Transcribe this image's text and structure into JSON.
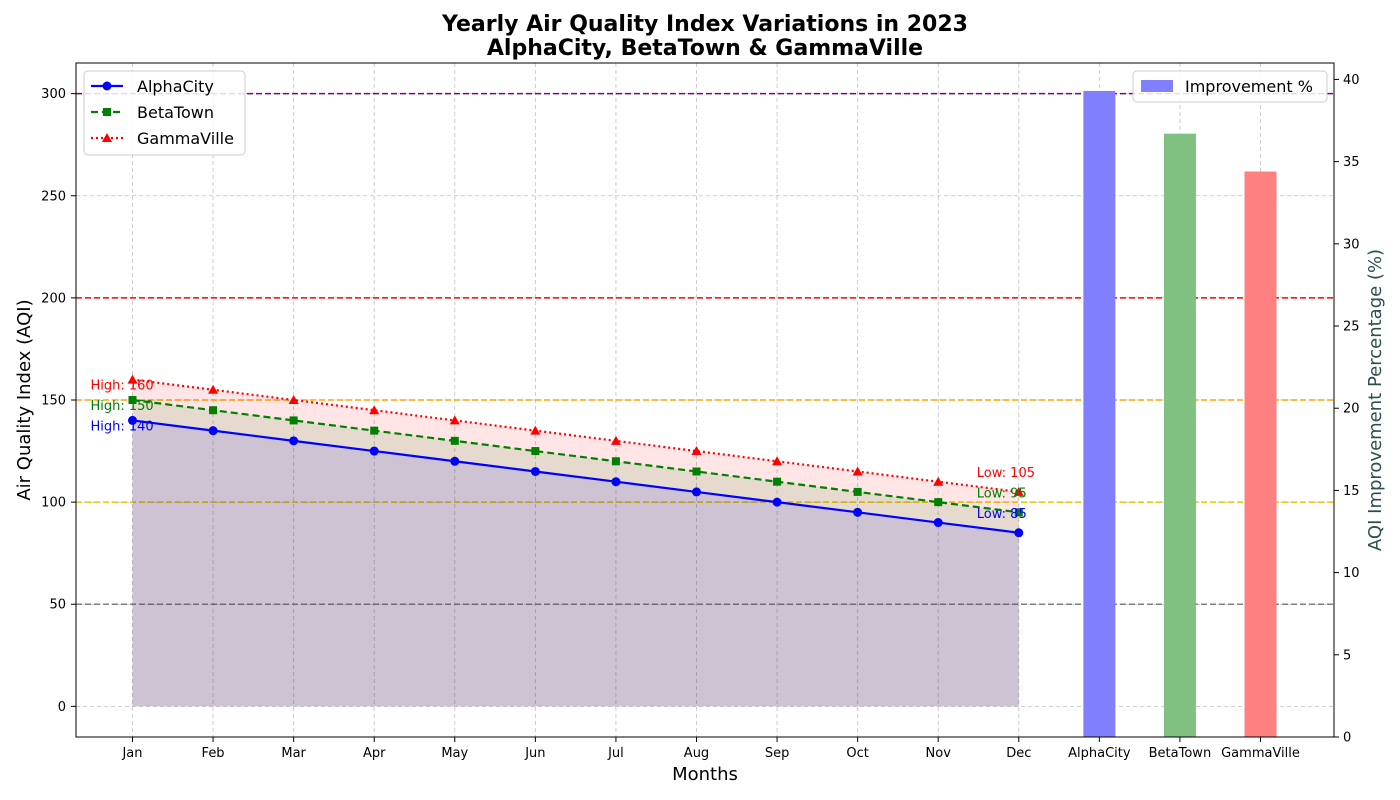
{
  "chart_data": {
    "type": "line",
    "title": "Yearly Air Quality Index Variations in 2023",
    "subtitle": "AlphaCity, BetaTown & GammaVille",
    "xlabel": "Months",
    "ylabel": "Air Quality Index (AQI)",
    "y2label": "AQI Improvement Percentage (%)",
    "categories": [
      "Jan",
      "Feb",
      "Mar",
      "Apr",
      "May",
      "Jun",
      "Jul",
      "Aug",
      "Sep",
      "Oct",
      "Nov",
      "Dec"
    ],
    "ylim": [
      -15,
      315
    ],
    "yticks": [
      0,
      50,
      100,
      150,
      200,
      250,
      300
    ],
    "y2lim": [
      0,
      41
    ],
    "y2ticks": [
      0,
      5,
      10,
      15,
      20,
      25,
      30,
      35,
      40
    ],
    "grid": true,
    "series": [
      {
        "name": "AlphaCity",
        "color": "#0000ff",
        "marker": "circle",
        "linestyle": "solid",
        "values": [
          140,
          135,
          130,
          125,
          120,
          115,
          110,
          105,
          100,
          95,
          90,
          85
        ],
        "high_label": "High: 140",
        "low_label": "Low: 85"
      },
      {
        "name": "BetaTown",
        "color": "#008000",
        "marker": "square",
        "linestyle": "dashed",
        "values": [
          150,
          145,
          140,
          135,
          130,
          125,
          120,
          115,
          110,
          105,
          100,
          95
        ],
        "high_label": "High: 150",
        "low_label": "Low: 95"
      },
      {
        "name": "GammaVille",
        "color": "#ff0000",
        "marker": "triangle",
        "linestyle": "dotted",
        "values": [
          160,
          155,
          150,
          145,
          140,
          135,
          130,
          125,
          120,
          115,
          110,
          105
        ],
        "high_label": "High: 160",
        "low_label": "Low: 105"
      }
    ],
    "reference_lines": [
      {
        "value": 50,
        "color": "#808080"
      },
      {
        "value": 100,
        "color": "#e6c800"
      },
      {
        "value": 150,
        "color": "#ffa500"
      },
      {
        "value": 200,
        "color": "#ff0000"
      },
      {
        "value": 300,
        "color": "#800080"
      }
    ],
    "bars": {
      "label": "Improvement %",
      "categories": [
        "AlphaCity",
        "BetaTown",
        "GammaVille"
      ],
      "values": [
        39.3,
        36.7,
        34.4
      ],
      "colors": [
        "#8080ff",
        "#80c080",
        "#ff8080"
      ]
    },
    "legend_left_placement": "top-left",
    "legend_right_placement": "top-right"
  }
}
